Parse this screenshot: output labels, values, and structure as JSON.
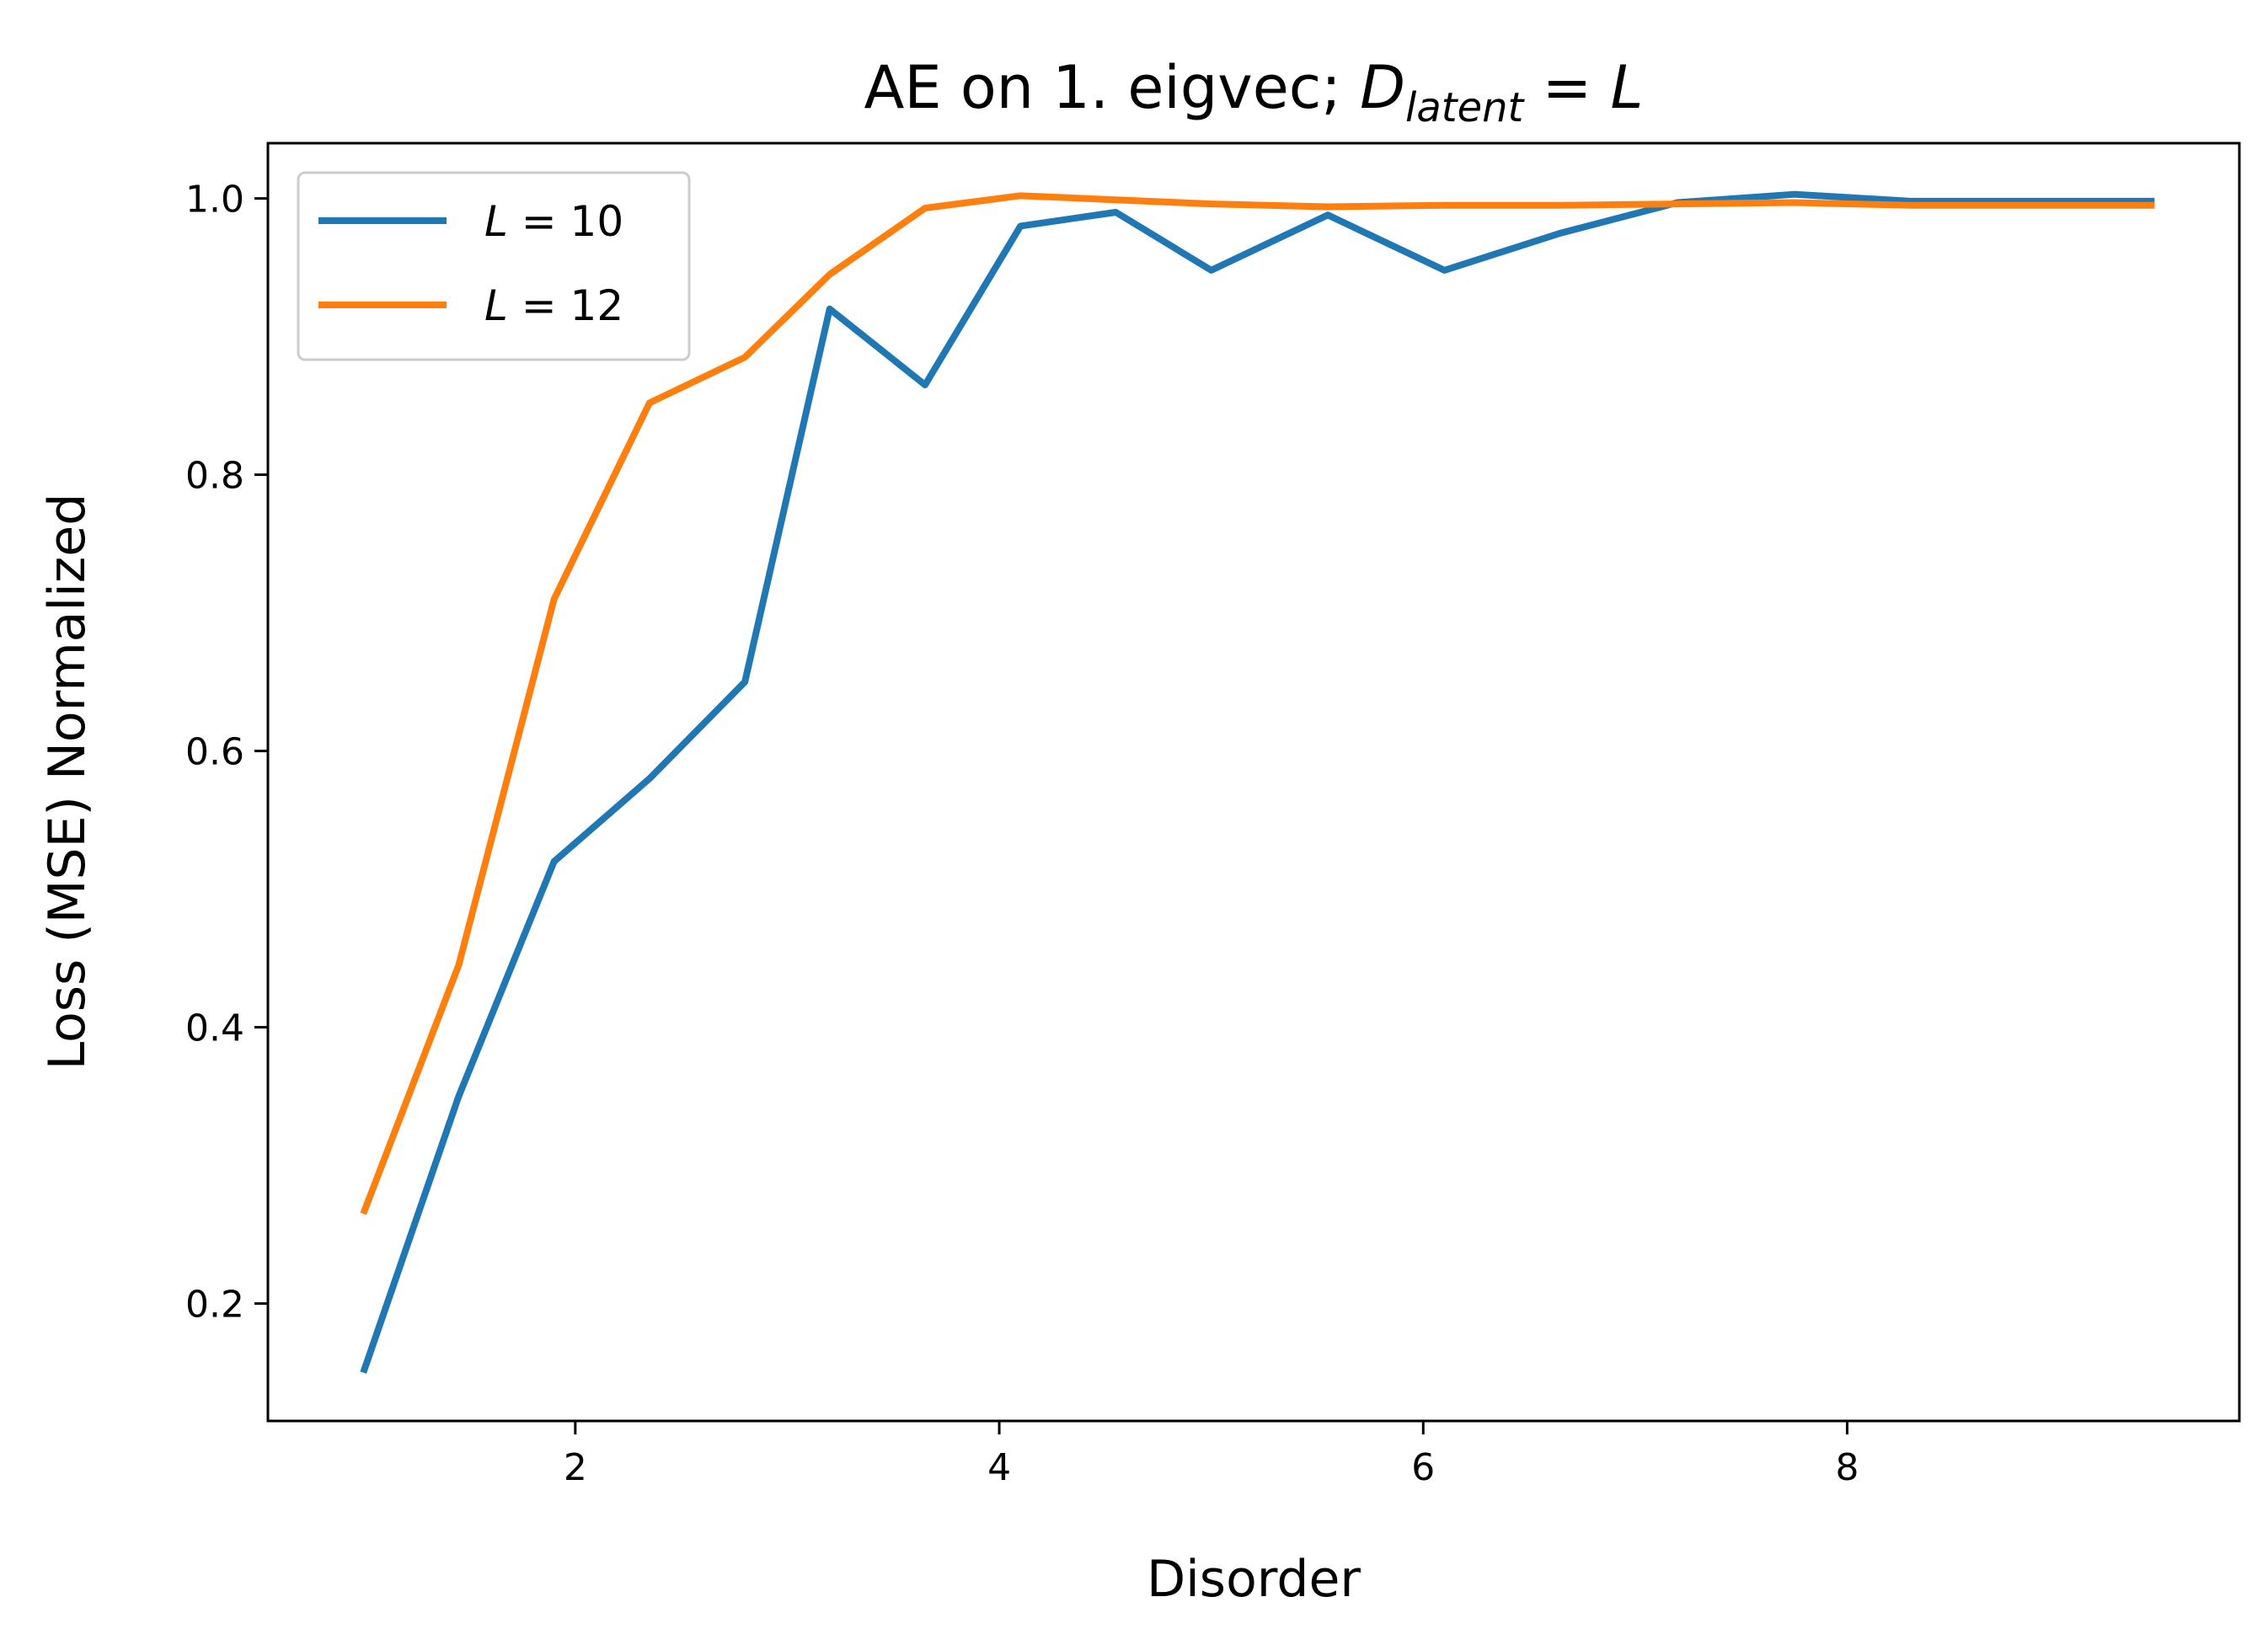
{
  "chart_data": {
    "type": "line",
    "title": {
      "prefix": "AE on 1. eigvec; ",
      "math_var": "D",
      "math_sub": "latent",
      "math_rest": " = L"
    },
    "xlabel": "Disorder",
    "ylabel": "Loss (MSE) Normalized",
    "xlim": [
      0.55,
      9.85
    ],
    "ylim": [
      0.115,
      1.04
    ],
    "xticks": [
      2,
      4,
      6,
      8
    ],
    "yticks": [
      0.2,
      0.4,
      0.6,
      0.8,
      1.0
    ],
    "xtick_labels": [
      "2",
      "4",
      "6",
      "8"
    ],
    "ytick_labels": [
      "0.2",
      "0.4",
      "0.6",
      "0.8",
      "1.0"
    ],
    "grid": false,
    "legend_position": "upper-left",
    "series": [
      {
        "legend_var": "L",
        "legend_value": " = 10",
        "color": "#1f77b4",
        "x": [
          1.0,
          1.45,
          1.9,
          2.35,
          2.8,
          3.2,
          3.65,
          4.1,
          4.55,
          5.0,
          5.55,
          6.1,
          6.65,
          7.2,
          7.75,
          8.3,
          8.85,
          9.45
        ],
        "y": [
          0.15,
          0.35,
          0.52,
          0.58,
          0.65,
          0.92,
          0.865,
          0.98,
          0.99,
          0.948,
          0.988,
          0.948,
          0.975,
          0.997,
          1.003,
          0.998,
          0.998,
          0.998
        ]
      },
      {
        "legend_var": "L",
        "legend_value": " = 12",
        "color": "#ff7f0e",
        "x": [
          1.0,
          1.45,
          1.9,
          2.35,
          2.8,
          3.2,
          3.65,
          4.1,
          4.55,
          5.0,
          5.55,
          6.1,
          6.65,
          7.2,
          7.75,
          8.3,
          8.85,
          9.45
        ],
        "y": [
          0.265,
          0.445,
          0.71,
          0.852,
          0.885,
          0.945,
          0.993,
          1.002,
          0.999,
          0.996,
          0.994,
          0.995,
          0.995,
          0.996,
          0.997,
          0.995,
          0.995,
          0.995
        ]
      }
    ]
  }
}
